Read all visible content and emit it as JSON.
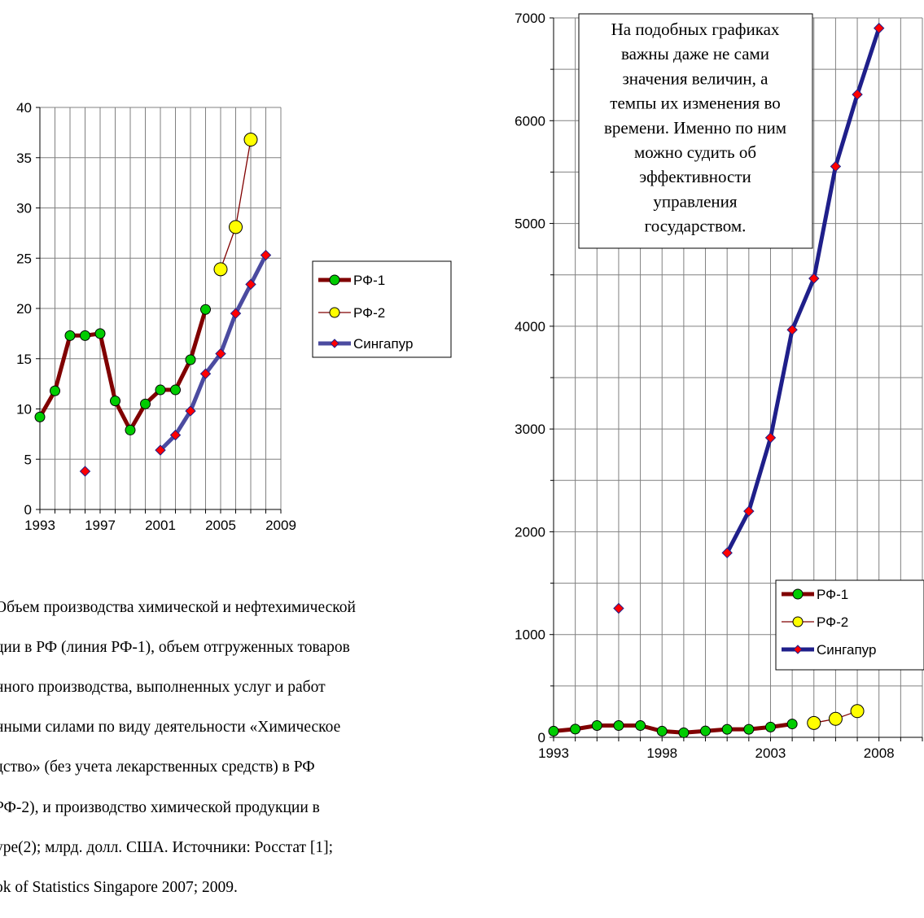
{
  "chart_data": [
    {
      "type": "line",
      "ylim": [
        0,
        40
      ],
      "yticks": [
        0,
        5,
        10,
        15,
        20,
        25,
        30,
        35,
        40
      ],
      "xlim": [
        1993,
        2009
      ],
      "xtick_labels": [
        "1993",
        "1997",
        "2001",
        "2005",
        "2009"
      ],
      "grid": true,
      "legend_position": "right",
      "legend": [
        "РФ-1",
        "РФ-2",
        "Сингапур"
      ],
      "series": [
        {
          "name": "РФ-1",
          "color": "#800000",
          "marker_color": "#00cc00",
          "points": [
            [
              1993,
              9.2
            ],
            [
              1994,
              11.8
            ],
            [
              1995,
              17.3
            ],
            [
              1996,
              17.3
            ],
            [
              1997,
              17.5
            ],
            [
              1998,
              10.8
            ],
            [
              1999,
              7.9
            ],
            [
              2000,
              10.5
            ],
            [
              2001,
              11.9
            ],
            [
              2002,
              11.9
            ],
            [
              2003,
              14.9
            ],
            [
              2004,
              19.9
            ]
          ]
        },
        {
          "name": "РФ-2",
          "color": "#800000",
          "marker_color": "#ffff00",
          "points": [
            [
              2005,
              23.9
            ],
            [
              2006,
              28.1
            ],
            [
              2007,
              36.8
            ]
          ]
        },
        {
          "name": "Сингапур",
          "color": "#4b4ba0",
          "marker_color": "#ff0000",
          "points": [
            [
              1996,
              3.8
            ],
            [
              2001,
              5.9
            ],
            [
              2002,
              7.4
            ],
            [
              2003,
              9.8
            ],
            [
              2004,
              13.5
            ],
            [
              2005,
              15.5
            ],
            [
              2006,
              19.5
            ],
            [
              2007,
              22.4
            ],
            [
              2008,
              25.3
            ]
          ]
        }
      ]
    },
    {
      "type": "line",
      "ylim": [
        0,
        7000
      ],
      "yticks": [
        0,
        1000,
        2000,
        3000,
        4000,
        5000,
        6000,
        7000
      ],
      "xlim": [
        1993,
        2010
      ],
      "xtick_labels": [
        "1993",
        "1998",
        "2003",
        "2008"
      ],
      "grid": true,
      "legend_position": "bottom-right",
      "legend": [
        "РФ-1",
        "РФ-2",
        "Сингапур"
      ],
      "annotation": [
        "На подобных графиках",
        "важны даже не сами",
        "значения величин, а",
        "темпы их изменения во",
        "времени. Именно по ним",
        "можно судить об",
        "эффективности",
        "управления",
        "государством."
      ],
      "series": [
        {
          "name": "РФ-1",
          "color": "#800000",
          "marker_color": "#00cc00",
          "points": [
            [
              1993,
              60
            ],
            [
              1994,
              80
            ],
            [
              1995,
              115
            ],
            [
              1996,
              115
            ],
            [
              1997,
              115
            ],
            [
              1998,
              60
            ],
            [
              1999,
              45
            ],
            [
              2000,
              62
            ],
            [
              2001,
              78
            ],
            [
              2002,
              78
            ],
            [
              2003,
              100
            ],
            [
              2004,
              130
            ]
          ]
        },
        {
          "name": "РФ-2",
          "color": "#800000",
          "marker_color": "#ffff00",
          "points": [
            [
              2005,
              140
            ],
            [
              2006,
              180
            ],
            [
              2007,
              255
            ]
          ]
        },
        {
          "name": "Сингапур",
          "color": "#1f1f8a",
          "marker_color": "#ff0000",
          "points": [
            [
              1996,
              1255
            ],
            [
              2001,
              1795
            ],
            [
              2002,
              2200
            ],
            [
              2003,
              2915
            ],
            [
              2004,
              3965
            ],
            [
              2005,
              4465
            ],
            [
              2006,
              5555
            ],
            [
              2007,
              6255
            ],
            [
              2008,
              6900
            ]
          ]
        }
      ]
    }
  ],
  "caption": {
    "lines": [
      "Объем производства химической и нефтехимической",
      "ции в РФ (линия РФ-1), объем отгруженных товаров",
      "нного производства, выполненных услуг и работ",
      "нными силами по виду деятельности «Химическое",
      "дство» (без учета лекарственных средств) в РФ",
      "РФ-2), и производство химической продукции в",
      "уре(2); млрд. долл. США. Источники: Росстат [1];",
      "ok of Statistics Singapore 2007; 2009."
    ]
  }
}
